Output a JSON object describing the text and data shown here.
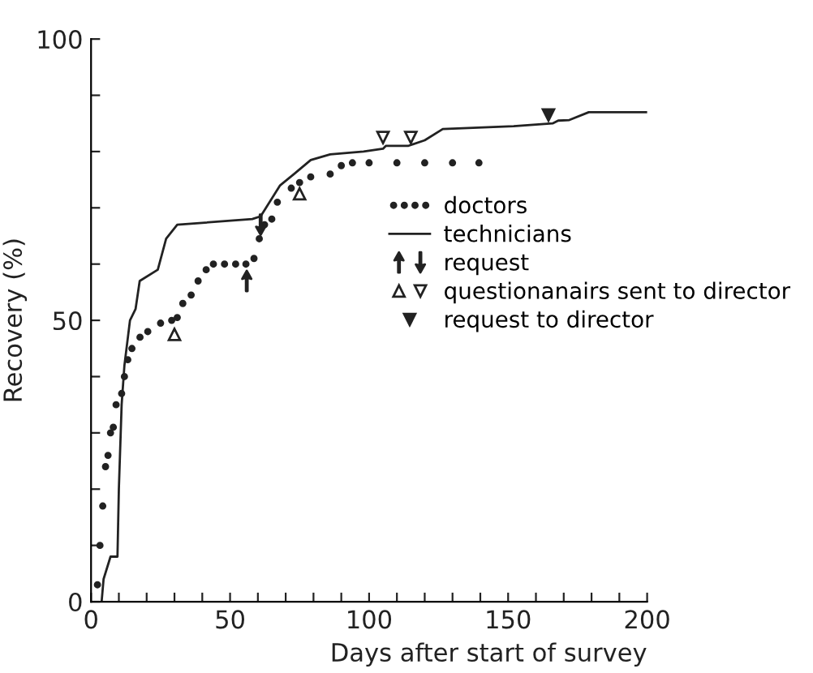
{
  "chart_data": {
    "type": "line",
    "xlabel": "Days after start of survey",
    "ylabel": "Recovery (%)",
    "xlim": [
      0,
      200
    ],
    "ylim": [
      0,
      100
    ],
    "xticks": [
      0,
      {
        "value": 10,
        "label": null
      },
      {
        "value": 20,
        "label": null
      },
      {
        "value": 30,
        "label": null
      },
      {
        "value": 40,
        "label": null
      },
      50,
      {
        "value": 60,
        "label": null
      },
      {
        "value": 70,
        "label": null
      },
      {
        "value": 80,
        "label": null
      },
      {
        "value": 90,
        "label": null
      },
      100,
      {
        "value": 110,
        "label": null
      },
      {
        "value": 120,
        "label": null
      },
      {
        "value": 130,
        "label": null
      },
      {
        "value": 140,
        "label": null
      },
      150,
      {
        "value": 160,
        "label": null
      },
      {
        "value": 170,
        "label": null
      },
      {
        "value": 180,
        "label": null
      },
      {
        "value": 190,
        "label": null
      },
      200
    ],
    "yticks": [
      0,
      {
        "value": 10,
        "label": null
      },
      {
        "value": 20,
        "label": null
      },
      {
        "value": 30,
        "label": null
      },
      {
        "value": 40,
        "label": null
      },
      50,
      {
        "value": 60,
        "label": null
      },
      {
        "value": 70,
        "label": null
      },
      {
        "value": 80,
        "label": null
      },
      {
        "value": 90,
        "label": null
      },
      100
    ],
    "grid": false,
    "legend": "right",
    "series": [
      {
        "name": "doctors",
        "type": "scatter",
        "marker": "circle",
        "color": "#222222",
        "x": [
          2.3,
          3.2,
          4.2,
          5.2,
          6.1,
          7,
          8,
          9,
          11,
          12,
          13.2,
          14.7,
          17.6,
          20.4,
          25,
          29,
          31,
          33,
          36,
          38.5,
          41.4,
          44,
          48,
          52,
          55.7,
          58.6,
          60.5,
          62.4,
          65,
          67,
          72,
          75,
          79,
          86,
          90,
          94,
          100,
          110,
          120,
          130,
          139.5
        ],
        "values": [
          3,
          10,
          17,
          24,
          26,
          30,
          31,
          35,
          37,
          40,
          43,
          45,
          47,
          48,
          49.5,
          50,
          50.5,
          53,
          54.5,
          57,
          59,
          60,
          60,
          60,
          60,
          61,
          64.5,
          67,
          68,
          71,
          73.5,
          74.5,
          75.5,
          76,
          77.5,
          78,
          78,
          78,
          78,
          78,
          78
        ]
      },
      {
        "name": "technicians",
        "line_style": "solid",
        "color": "#222222",
        "x": [
          3.8,
          4.5,
          7,
          9.5,
          10,
          11,
          12,
          14,
          16,
          17.5,
          24,
          27,
          31,
          58,
          61,
          68,
          73,
          79,
          86,
          98,
          105,
          106,
          110,
          114,
          120,
          126.5,
          152,
          166,
          168,
          172,
          179,
          200
        ],
        "values": [
          0,
          4,
          8,
          8,
          20,
          35,
          42,
          50,
          52,
          57,
          59,
          64.5,
          67,
          68,
          68.5,
          74,
          76,
          78.5,
          79.5,
          80,
          80.5,
          81,
          81,
          81,
          82,
          84,
          84.5,
          85,
          85.5,
          85.6,
          87,
          87
        ]
      },
      {
        "name": "request",
        "type": "scatter",
        "color": "#222222",
        "x": [
          56,
          61
        ],
        "values": [
          57,
          67
        ]
      },
      {
        "name": "questionanairs sent to director",
        "type": "scatter",
        "marker": "triangle_open",
        "color": "#222222",
        "x": [
          30,
          75
        ],
        "values": [
          47.5,
          72.5
        ]
      },
      {
        "type": "scatter",
        "marker": "triangle_down_open",
        "color": "#222222",
        "x": [
          105,
          115
        ],
        "values": [
          82.5,
          82.5
        ]
      },
      {
        "name": "request to director",
        "type": "scatter",
        "marker": "triangle_down",
        "color": "#222222",
        "x": [
          164.5
        ],
        "values": [
          86.5
        ]
      }
    ]
  }
}
